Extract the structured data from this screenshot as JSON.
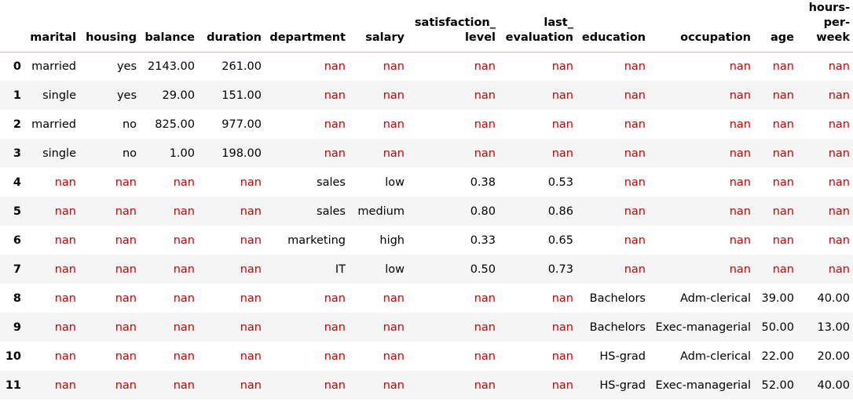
{
  "columns": [
    "marital",
    "housing",
    "balance",
    "duration",
    "department",
    "salary",
    "satisfaction_ level",
    "last_ evaluation",
    "education",
    "occupation",
    "age",
    "hours- per- week"
  ],
  "rows": [
    {
      "index": "0",
      "cells": [
        "married",
        "yes",
        "2143.00",
        "261.00",
        "nan",
        "nan",
        "nan",
        "nan",
        "nan",
        "nan",
        "nan",
        "nan"
      ]
    },
    {
      "index": "1",
      "cells": [
        "single",
        "yes",
        "29.00",
        "151.00",
        "nan",
        "nan",
        "nan",
        "nan",
        "nan",
        "nan",
        "nan",
        "nan"
      ]
    },
    {
      "index": "2",
      "cells": [
        "married",
        "no",
        "825.00",
        "977.00",
        "nan",
        "nan",
        "nan",
        "nan",
        "nan",
        "nan",
        "nan",
        "nan"
      ]
    },
    {
      "index": "3",
      "cells": [
        "single",
        "no",
        "1.00",
        "198.00",
        "nan",
        "nan",
        "nan",
        "nan",
        "nan",
        "nan",
        "nan",
        "nan"
      ]
    },
    {
      "index": "4",
      "cells": [
        "nan",
        "nan",
        "nan",
        "nan",
        "sales",
        "low",
        "0.38",
        "0.53",
        "nan",
        "nan",
        "nan",
        "nan"
      ]
    },
    {
      "index": "5",
      "cells": [
        "nan",
        "nan",
        "nan",
        "nan",
        "sales",
        "medium",
        "0.80",
        "0.86",
        "nan",
        "nan",
        "nan",
        "nan"
      ]
    },
    {
      "index": "6",
      "cells": [
        "nan",
        "nan",
        "nan",
        "nan",
        "marketing",
        "high",
        "0.33",
        "0.65",
        "nan",
        "nan",
        "nan",
        "nan"
      ]
    },
    {
      "index": "7",
      "cells": [
        "nan",
        "nan",
        "nan",
        "nan",
        "IT",
        "low",
        "0.50",
        "0.73",
        "nan",
        "nan",
        "nan",
        "nan"
      ]
    },
    {
      "index": "8",
      "cells": [
        "nan",
        "nan",
        "nan",
        "nan",
        "nan",
        "nan",
        "nan",
        "nan",
        "Bachelors",
        "Adm-clerical",
        "39.00",
        "40.00"
      ]
    },
    {
      "index": "9",
      "cells": [
        "nan",
        "nan",
        "nan",
        "nan",
        "nan",
        "nan",
        "nan",
        "nan",
        "Bachelors",
        "Exec-managerial",
        "50.00",
        "13.00"
      ]
    },
    {
      "index": "10",
      "cells": [
        "nan",
        "nan",
        "nan",
        "nan",
        "nan",
        "nan",
        "nan",
        "nan",
        "HS-grad",
        "Adm-clerical",
        "22.00",
        "20.00"
      ]
    },
    {
      "index": "11",
      "cells": [
        "nan",
        "nan",
        "nan",
        "nan",
        "nan",
        "nan",
        "nan",
        "nan",
        "HS-grad",
        "Exec-managerial",
        "52.00",
        "40.00"
      ]
    }
  ],
  "colors": {
    "missing_value": "#cc0000",
    "stripe": "#f5f5f5",
    "header_rule": "#e0b0b0"
  }
}
